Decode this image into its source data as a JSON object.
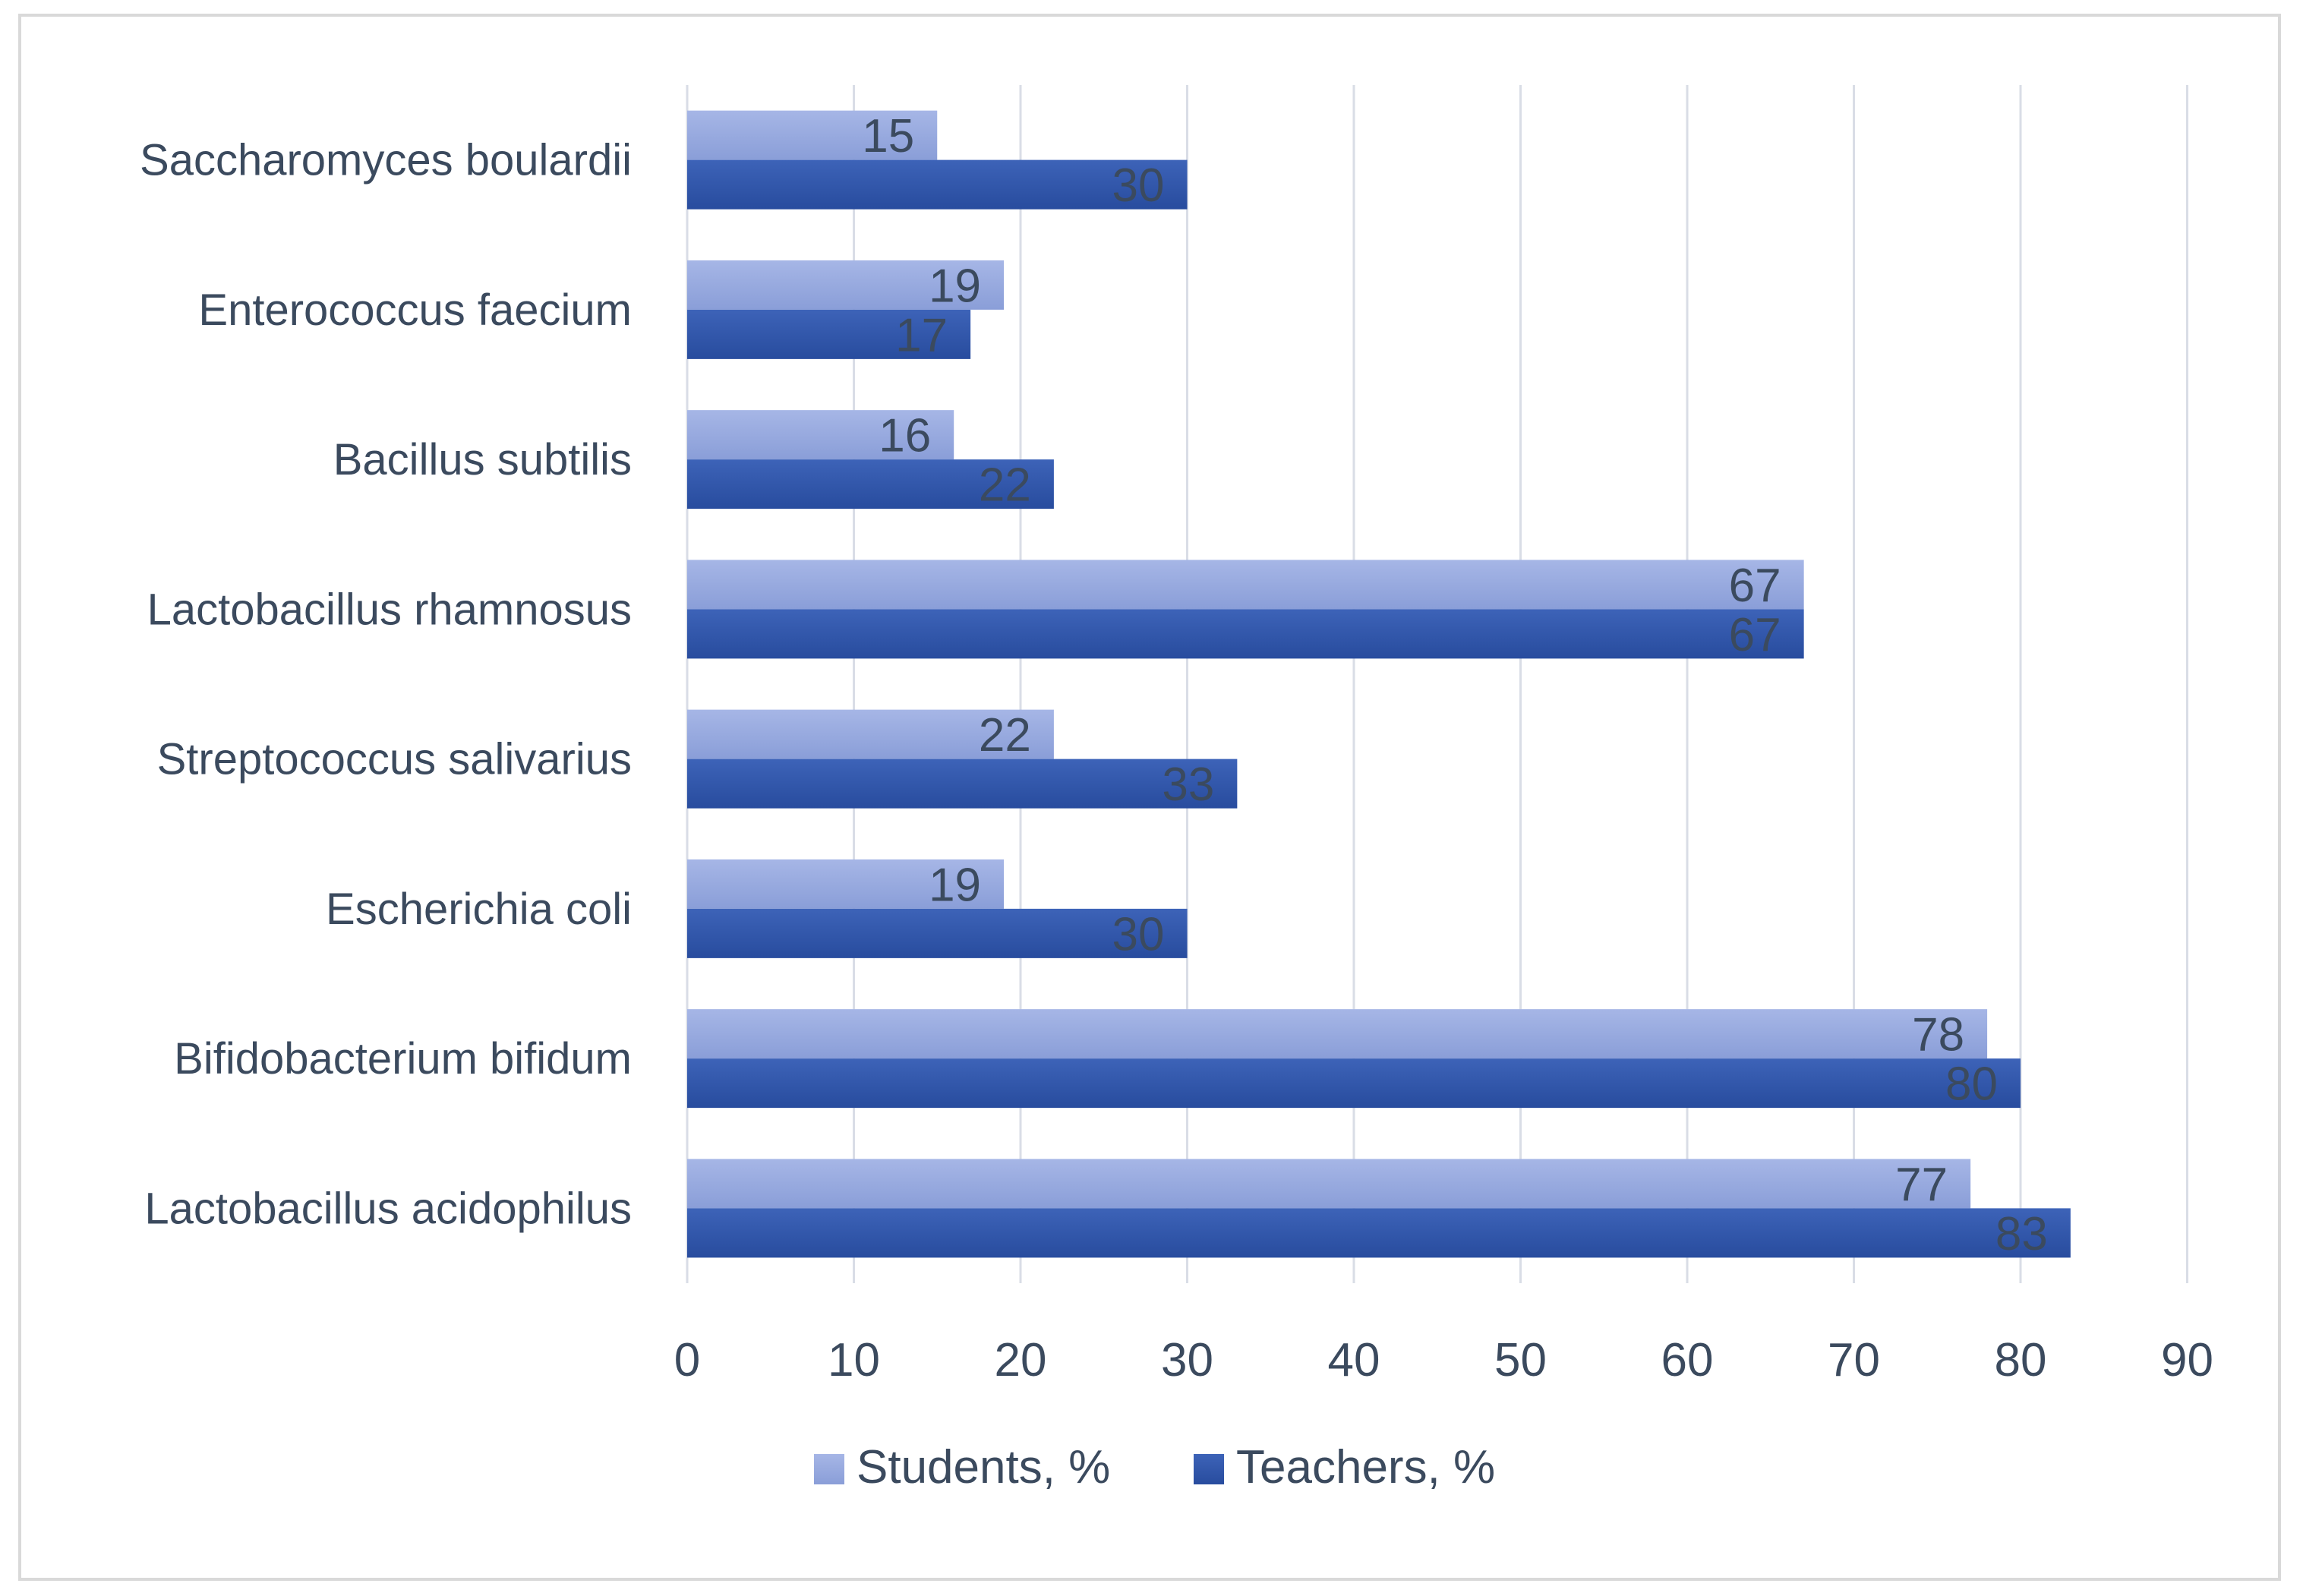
{
  "chart_data": {
    "type": "bar",
    "orientation": "horizontal",
    "categories": [
      "Saccharomyces boulardii",
      "Enterococcus faecium",
      "Bacillus subtilis",
      "Lactobacillus rhamnosus",
      "Streptococcus salivarius",
      "Escherichia coli",
      "Bifidobacterium bifidum",
      "Lactobacillus acidophilus"
    ],
    "series": [
      {
        "name": "Students, %",
        "color": "#8fa3dc",
        "values": [
          15,
          19,
          16,
          67,
          22,
          19,
          78,
          77
        ],
        "labels": [
          "15",
          "19",
          "16",
          "67",
          "22",
          "19",
          "78",
          "77"
        ]
      },
      {
        "name": "Teachers, %",
        "color": "#2f55a8",
        "values": [
          30,
          17,
          22,
          67,
          33,
          30,
          80,
          83
        ],
        "labels": [
          "30",
          "17",
          "22",
          "67",
          "33",
          "30",
          "80",
          "83"
        ]
      }
    ],
    "x_ticks": [
      "0",
      "10",
      "20",
      "30",
      "40",
      "50",
      "60",
      "70",
      "80",
      "90"
    ],
    "xlim": [
      0,
      90
    ],
    "grid": "vertical",
    "legend_position": "bottom",
    "data_labels": "inside-end"
  }
}
